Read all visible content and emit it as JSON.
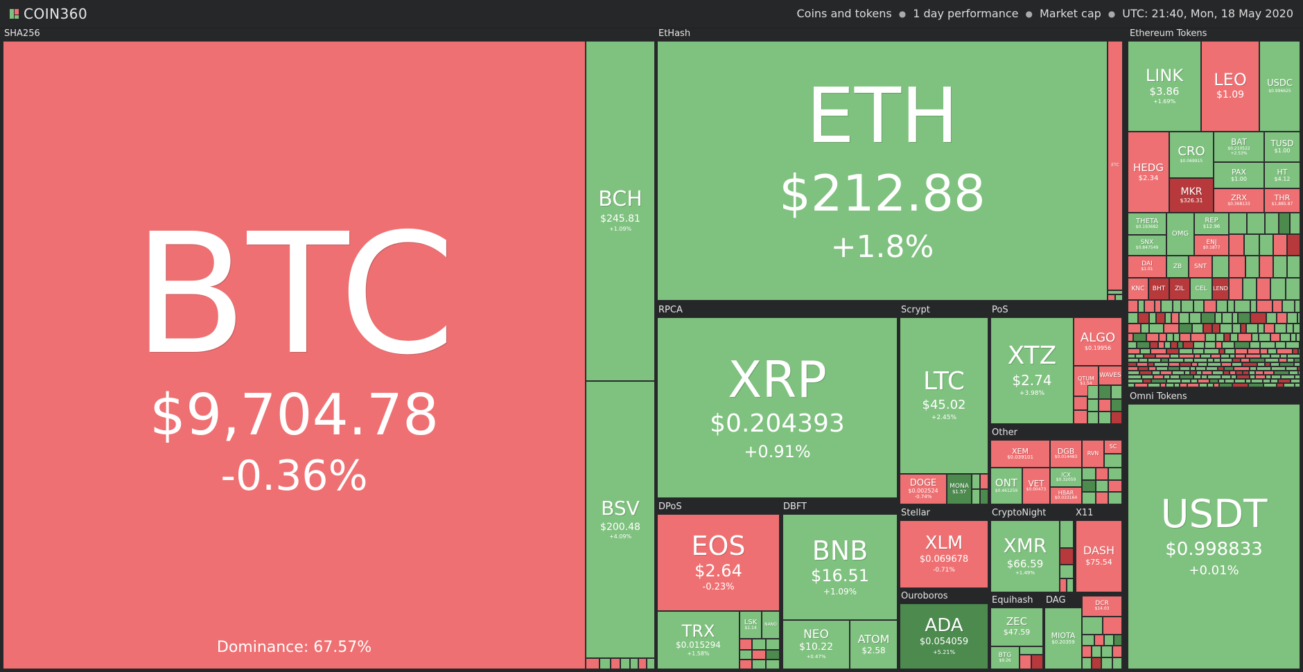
{
  "header": {
    "logo_text": "COIN360",
    "nav": [
      "Coins and tokens",
      "1 day performance",
      "Market cap"
    ],
    "time": "UTC: 21:40, Mon, 18 May 2020"
  },
  "groups": {
    "sha256": "SHA256",
    "ethash": "EtHash",
    "ethereum_tokens": "Ethereum Tokens",
    "rpca": "RPCA",
    "scrypt": "Scrypt",
    "pos": "PoS",
    "other": "Other",
    "omni": "Omni Tokens",
    "dpos": "DPoS",
    "dbft": "DBFT",
    "stellar": "Stellar",
    "cryptonight": "CryptoNight",
    "x11": "X11",
    "ouroboros": "Ouroboros",
    "equihash": "Equihash",
    "dag": "DAG"
  },
  "btc": {
    "sym": "BTC",
    "price": "$9,704.78",
    "chg": "-0.36%",
    "dominance": "Dominance: 67.57%"
  },
  "bch": {
    "sym": "BCH",
    "price": "$245.81",
    "chg": "+1.09%"
  },
  "bsv": {
    "sym": "BSV",
    "price": "$200.48",
    "chg": "+4.09%"
  },
  "eth": {
    "sym": "ETH",
    "price": "$212.88",
    "chg": "+1.8%"
  },
  "etc": {
    "sym": "ETC"
  },
  "xrp": {
    "sym": "XRP",
    "price": "$0.204393",
    "chg": "+0.91%"
  },
  "ltc": {
    "sym": "LTC",
    "price": "$45.02",
    "chg": "+2.45%"
  },
  "doge": {
    "sym": "DOGE",
    "price": "$0.002524",
    "chg": "-0.74%"
  },
  "mona": {
    "sym": "MONA",
    "price": "$1.57"
  },
  "xtz": {
    "sym": "XTZ",
    "price": "$2.74",
    "chg": "+3.98%"
  },
  "algo": {
    "sym": "ALGO",
    "price": "$0.19956"
  },
  "qtum": {
    "sym": "QTUM",
    "price": "$1.54"
  },
  "waves": {
    "sym": "WAVES"
  },
  "xem": {
    "sym": "XEM",
    "price": "$0.039101"
  },
  "dgb": {
    "sym": "DGB",
    "price": "$0.014483"
  },
  "rvn": {
    "sym": "RVN"
  },
  "sc": {
    "sym": "SC"
  },
  "ont": {
    "sym": "ONT",
    "price": "$0.461259"
  },
  "vet": {
    "sym": "VET",
    "price": "$0.00473"
  },
  "icx": {
    "sym": "ICX",
    "price": "$0.32059"
  },
  "hbar": {
    "sym": "HBAR",
    "price": "$0.033164"
  },
  "eos": {
    "sym": "EOS",
    "price": "$2.64",
    "chg": "-0.23%"
  },
  "trx": {
    "sym": "TRX",
    "price": "$0.015294",
    "chg": "+1.58%"
  },
  "lsk": {
    "sym": "LSK",
    "price": "$1.14"
  },
  "nano": {
    "sym": "NANO"
  },
  "bnb": {
    "sym": "BNB",
    "price": "$16.51",
    "chg": "+1.09%"
  },
  "neo": {
    "sym": "NEO",
    "price": "$10.22",
    "chg": "+0.47%"
  },
  "atom": {
    "sym": "ATOM",
    "price": "$2.58"
  },
  "xlm": {
    "sym": "XLM",
    "price": "$0.069678",
    "chg": "-0.71%"
  },
  "ada": {
    "sym": "ADA",
    "price": "$0.054059",
    "chg": "+5.21%"
  },
  "xmr": {
    "sym": "XMR",
    "price": "$66.59",
    "chg": "+1.49%"
  },
  "dash": {
    "sym": "DASH",
    "price": "$75.54"
  },
  "zec": {
    "sym": "ZEC",
    "price": "$47.59"
  },
  "btg": {
    "sym": "BTG",
    "price": "$9.26"
  },
  "miota": {
    "sym": "MIOTA",
    "price": "$0.20359"
  },
  "dcr": {
    "sym": "DCR",
    "price": "$14.03"
  },
  "usdt": {
    "sym": "USDT",
    "price": "$0.998833",
    "chg": "+0.01%"
  },
  "tokens": {
    "link": {
      "sym": "LINK",
      "price": "$3.86",
      "chg": "+1.69%"
    },
    "leo": {
      "sym": "LEO",
      "price": "$1.09"
    },
    "usdc": {
      "sym": "USDC",
      "price": "$0.996625"
    },
    "hedg": {
      "sym": "HEDG",
      "price": "$2.34"
    },
    "cro": {
      "sym": "CRO",
      "price": "$0.069915"
    },
    "bat": {
      "sym": "BAT",
      "price": "$0.210522",
      "chg": "+2.53%"
    },
    "tusd": {
      "sym": "TUSD",
      "price": "$1.00"
    },
    "mkr": {
      "sym": "MKR",
      "price": "$326.31"
    },
    "pax": {
      "sym": "PAX",
      "price": "$1.00"
    },
    "ht": {
      "sym": "HT",
      "price": "$4.12"
    },
    "zrx": {
      "sym": "ZRX",
      "price": "$0.368133"
    },
    "thr": {
      "sym": "THR",
      "price": "$1,885.87"
    },
    "theta": {
      "sym": "THETA",
      "price": "$0.193682"
    },
    "rep": {
      "sym": "REP",
      "price": "$12.96"
    },
    "snx": {
      "sym": "SNX",
      "price": "$0.847549"
    },
    "omg": {
      "sym": "OMG"
    },
    "enj": {
      "sym": "ENJ",
      "price": "$0.1877"
    },
    "dai": {
      "sym": "DAI",
      "price": "$1.01"
    },
    "zb": {
      "sym": "ZB"
    },
    "snt": {
      "sym": "SNT"
    },
    "knc": {
      "sym": "KNC"
    },
    "bht": {
      "sym": "BHT"
    },
    "zil": {
      "sym": "ZIL"
    },
    "cel": {
      "sym": "CEL"
    },
    "lend": {
      "sym": "LEND"
    }
  },
  "colors": {
    "up": "#7fc17f",
    "down": "#ef7072",
    "bg": "#262729"
  }
}
